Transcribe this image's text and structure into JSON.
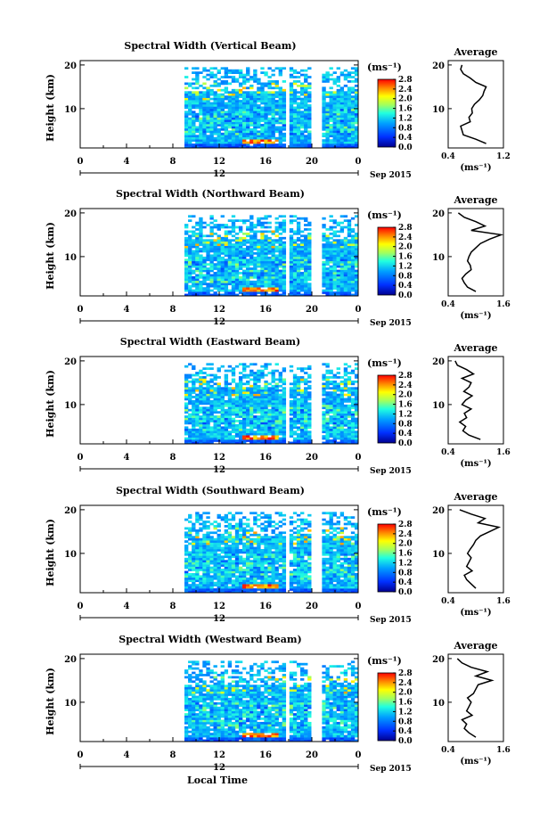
{
  "figure": {
    "date_label": "Sep 2015",
    "xlabel": "Local Time",
    "side_title": "Average",
    "unit_label": "(ms⁻¹)",
    "ylabel": "Height (km)"
  },
  "chart_data": [
    {
      "type": "heatmap",
      "title": "Spectral Width (Vertical Beam)",
      "xlabel": "Local Time",
      "ylabel": "Height (km)",
      "xlim": [
        0,
        24
      ],
      "ylim": [
        1,
        21
      ],
      "x_ticks": [
        "0",
        "4",
        "8",
        "12",
        "16",
        "20",
        "0"
      ],
      "y_ticks": [
        "20",
        "10"
      ],
      "data_start_hour": 9,
      "gaps_hours": [
        [
          17.6,
          18.1
        ],
        [
          19.9,
          20.9
        ]
      ],
      "colorbar": {
        "label": "(ms⁻¹)",
        "min": 0.0,
        "max": 2.8,
        "ticks": [
          "2.8",
          "2.4",
          "2.0",
          "1.6",
          "1.2",
          "0.8",
          "0.4",
          "0.0"
        ]
      },
      "average_profile": {
        "title": "Average",
        "xlabel": "(ms⁻¹)",
        "xlim": [
          0.4,
          1.2
        ],
        "x_ticks": [
          "0.4",
          "1.2"
        ],
        "y_ticks": [
          "20",
          "10"
        ],
        "heights": [
          2,
          3,
          4,
          5,
          6,
          7,
          8,
          9,
          10,
          11,
          12,
          13,
          14,
          15,
          16,
          17,
          18,
          19,
          20
        ],
        "values": [
          0.95,
          0.8,
          0.62,
          0.6,
          0.58,
          0.72,
          0.7,
          0.75,
          0.74,
          0.78,
          0.85,
          0.9,
          0.92,
          0.95,
          0.8,
          0.72,
          0.62,
          0.58,
          0.6
        ]
      }
    },
    {
      "type": "heatmap",
      "title": "Spectral Width (Northward Beam)",
      "xlabel": "Local Time",
      "ylabel": "Height (km)",
      "xlim": [
        0,
        24
      ],
      "ylim": [
        1,
        21
      ],
      "x_ticks": [
        "0",
        "4",
        "8",
        "12",
        "16",
        "20",
        "0"
      ],
      "y_ticks": [
        "20",
        "10"
      ],
      "data_start_hour": 9,
      "gaps_hours": [
        [
          17.6,
          18.1
        ],
        [
          19.9,
          20.9
        ]
      ],
      "colorbar": {
        "label": "(ms⁻¹)",
        "min": 0.0,
        "max": 2.8,
        "ticks": [
          "2.8",
          "2.4",
          "2.0",
          "1.6",
          "1.2",
          "0.8",
          "0.4",
          "0.0"
        ]
      },
      "average_profile": {
        "title": "Average",
        "xlabel": "(ms⁻¹)",
        "xlim": [
          0.4,
          1.6
        ],
        "x_ticks": [
          "0.4",
          "1.6"
        ],
        "y_ticks": [
          "20",
          "10"
        ],
        "heights": [
          2,
          3,
          4,
          5,
          6,
          7,
          8,
          9,
          10,
          11,
          12,
          13,
          14,
          15,
          16,
          17,
          18,
          19,
          20
        ],
        "values": [
          1.0,
          0.82,
          0.75,
          0.7,
          0.78,
          0.9,
          0.88,
          0.82,
          0.85,
          0.9,
          1.0,
          1.1,
          1.3,
          1.55,
          0.9,
          1.2,
          1.0,
          0.75,
          0.62
        ]
      }
    },
    {
      "type": "heatmap",
      "title": "Spectral Width (Eastward Beam)",
      "xlabel": "Local Time",
      "ylabel": "Height (km)",
      "xlim": [
        0,
        24
      ],
      "ylim": [
        1,
        21
      ],
      "x_ticks": [
        "0",
        "4",
        "8",
        "12",
        "16",
        "20",
        "0"
      ],
      "y_ticks": [
        "20",
        "10"
      ],
      "data_start_hour": 9,
      "gaps_hours": [
        [
          17.6,
          18.1
        ],
        [
          19.9,
          20.9
        ]
      ],
      "colorbar": {
        "label": "(ms⁻¹)",
        "min": 0.0,
        "max": 2.8,
        "ticks": [
          "2.8",
          "2.4",
          "2.0",
          "1.6",
          "1.2",
          "0.8",
          "0.4",
          "0.0"
        ]
      },
      "average_profile": {
        "title": "Average",
        "xlabel": "(ms⁻¹)",
        "xlim": [
          0.4,
          1.6
        ],
        "x_ticks": [
          "0.4",
          "1.6"
        ],
        "y_ticks": [
          "20",
          "10"
        ],
        "heights": [
          2,
          3,
          4,
          5,
          6,
          7,
          8,
          9,
          10,
          11,
          12,
          13,
          14,
          15,
          16,
          17,
          18,
          19,
          20
        ],
        "values": [
          1.1,
          0.85,
          0.72,
          0.78,
          0.65,
          0.8,
          0.75,
          0.9,
          0.7,
          0.78,
          0.92,
          0.74,
          0.85,
          0.9,
          0.7,
          0.95,
          0.8,
          0.6,
          0.55
        ]
      }
    },
    {
      "type": "heatmap",
      "title": "Spectral Width (Southward Beam)",
      "xlabel": "Local Time",
      "ylabel": "Height (km)",
      "xlim": [
        0,
        24
      ],
      "ylim": [
        1,
        21
      ],
      "x_ticks": [
        "0",
        "4",
        "8",
        "12",
        "16",
        "20",
        "0"
      ],
      "y_ticks": [
        "20",
        "10"
      ],
      "data_start_hour": 9,
      "gaps_hours": [
        [
          17.6,
          18.1
        ],
        [
          19.9,
          20.9
        ]
      ],
      "colorbar": {
        "label": "(ms⁻¹)",
        "min": 0.0,
        "max": 2.8,
        "ticks": [
          "2.8",
          "2.4",
          "2.0",
          "1.6",
          "1.2",
          "0.8",
          "0.4",
          "0.0"
        ]
      },
      "average_profile": {
        "title": "Average",
        "xlabel": "(ms⁻¹)",
        "xlim": [
          0.4,
          1.6
        ],
        "x_ticks": [
          "0.4",
          "1.6"
        ],
        "y_ticks": [
          "20",
          "10"
        ],
        "heights": [
          2,
          3,
          4,
          5,
          6,
          7,
          8,
          9,
          10,
          11,
          12,
          13,
          14,
          15,
          16,
          17,
          18,
          19,
          20
        ],
        "values": [
          1.0,
          0.9,
          0.8,
          0.75,
          0.92,
          0.8,
          0.85,
          0.9,
          0.82,
          0.88,
          0.95,
          1.0,
          1.1,
          1.3,
          1.5,
          1.05,
          1.2,
          0.9,
          0.65
        ]
      }
    },
    {
      "type": "heatmap",
      "title": "Spectral Width (Westward Beam)",
      "xlabel": "Local Time",
      "ylabel": "Height (km)",
      "xlim": [
        0,
        24
      ],
      "ylim": [
        1,
        21
      ],
      "x_ticks": [
        "0",
        "4",
        "8",
        "12",
        "16",
        "20",
        "0"
      ],
      "y_ticks": [
        "20",
        "10"
      ],
      "data_start_hour": 9,
      "gaps_hours": [
        [
          17.6,
          18.1
        ],
        [
          19.9,
          20.9
        ]
      ],
      "colorbar": {
        "label": "(ms⁻¹)",
        "min": 0.0,
        "max": 2.8,
        "ticks": [
          "2.8",
          "2.4",
          "2.0",
          "1.6",
          "1.2",
          "0.8",
          "0.4",
          "0.0"
        ]
      },
      "average_profile": {
        "title": "Average",
        "xlabel": "(ms⁻¹)",
        "xlim": [
          0.4,
          1.6
        ],
        "x_ticks": [
          "0.4",
          "1.6"
        ],
        "y_ticks": [
          "20",
          "10"
        ],
        "heights": [
          2,
          3,
          4,
          5,
          6,
          7,
          8,
          9,
          10,
          11,
          12,
          13,
          14,
          15,
          16,
          17,
          18,
          19,
          20
        ],
        "values": [
          1.0,
          0.85,
          0.75,
          0.8,
          0.7,
          0.92,
          0.8,
          0.85,
          0.9,
          0.82,
          0.95,
          1.0,
          1.05,
          1.35,
          1.0,
          1.25,
          0.9,
          0.7,
          0.6
        ]
      }
    }
  ]
}
